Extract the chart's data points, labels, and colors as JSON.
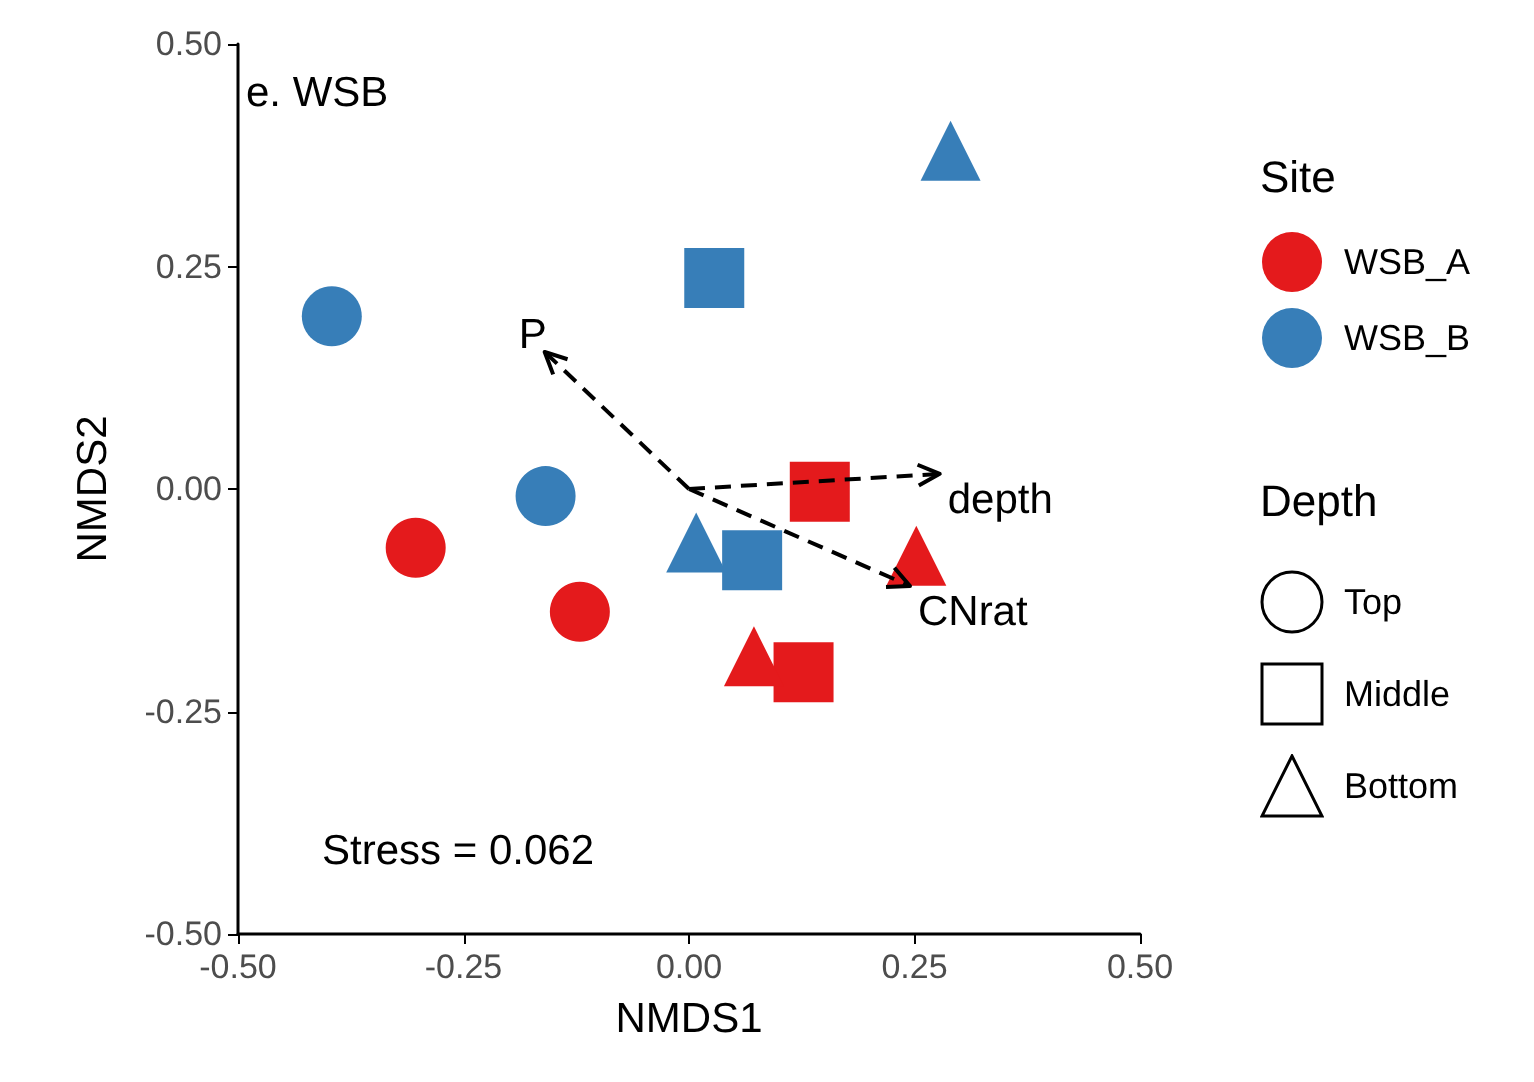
{
  "chart_data": {
    "type": "scatter",
    "xlabel": "NMDS1",
    "ylabel": "NMDS2",
    "annotations": [
      "e. WSB",
      "Stress = 0.062",
      "Site",
      "WSB_A",
      "WSB_B",
      "Depth",
      "Top",
      "Middle",
      "Bottom",
      "P",
      "depth",
      "CNrat"
    ],
    "xlim": [
      -0.5,
      0.5
    ],
    "xticks": [
      {
        "value": -0.5,
        "label": "-0.50"
      },
      {
        "value": -0.25,
        "label": "-0.25"
      },
      {
        "value": 0,
        "label": "0.00"
      },
      {
        "value": 0.25,
        "label": "0.25"
      },
      {
        "value": 0.5,
        "label": "0.50"
      }
    ],
    "ylim": [
      -0.5,
      0.5
    ],
    "yticks": [
      {
        "value": -0.5,
        "label": "-0.50"
      },
      {
        "value": -0.25,
        "label": "-0.25"
      },
      {
        "value": 0,
        "label": "0.00"
      },
      {
        "value": 0.25,
        "label": "0.25"
      },
      {
        "value": 0.5,
        "label": "0.50"
      }
    ],
    "series": [
      {
        "color": "#e41a1c",
        "marker": "circle",
        "x": [
          -0.303,
          -0.121
        ],
        "values": [
          -0.066,
          -0.138
        ]
      },
      {
        "color": "#377eb8",
        "marker": "circle",
        "x": [
          -0.396,
          -0.159
        ],
        "values": [
          0.194,
          -0.008
        ]
      },
      {
        "color": "#e41a1c",
        "marker": "square",
        "x": [
          0.145,
          0.127
        ],
        "values": [
          -0.003,
          -0.206
        ]
      },
      {
        "color": "#377eb8",
        "marker": "square",
        "x": [
          0.028,
          0.07
        ],
        "values": [
          0.237,
          -0.08
        ]
      },
      {
        "color": "#e41a1c",
        "marker": "triangle",
        "x": [
          0.252,
          0.072
        ],
        "values": [
          -0.075,
          -0.188
        ]
      },
      {
        "color": "#377eb8",
        "marker": "triangle",
        "x": [
          0.29,
          0.008
        ],
        "values": [
          0.38,
          -0.06
        ]
      }
    ]
  }
}
